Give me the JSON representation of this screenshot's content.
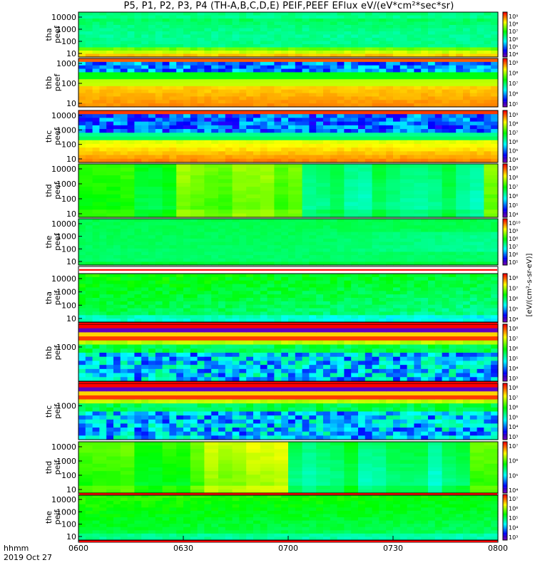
{
  "title": "P5, P1, P2, P3, P4 (TH-A,B,C,D,E) PEIF,PEEF EFlux eV/(eV*cm²*sec*sr)",
  "chart_data": {
    "type": "heatmap",
    "x_ticks": [
      "0600",
      "0630",
      "0700",
      "0730",
      "0800"
    ],
    "x_label": "hhmm",
    "date_label": "2019 Oct 27",
    "colorbar_label": "[eV/(cm²-s-sr-eV)]",
    "panels": [
      {
        "probe": "tha",
        "product": "peef",
        "y_ticks": [
          "10000",
          "1000",
          "100",
          "10"
        ],
        "cbar_ticks": [
          "10⁹",
          "10⁸",
          "10⁷",
          "10⁶",
          "10⁵",
          "10⁴"
        ],
        "pattern": "elec_a"
      },
      {
        "probe": "thb",
        "product": "peef",
        "y_ticks": [
          "1000",
          "100",
          "10"
        ],
        "cbar_ticks": [
          "10⁹",
          "10⁸",
          "10⁷",
          "10⁶",
          "10⁵"
        ],
        "pattern": "elec_b"
      },
      {
        "probe": "thc",
        "product": "peef",
        "y_ticks": [
          "10000",
          "1000",
          "100",
          "10"
        ],
        "cbar_ticks": [
          "10⁹",
          "10⁸",
          "10⁷",
          "10⁶",
          "10⁵",
          "10⁴"
        ],
        "pattern": "elec_c"
      },
      {
        "probe": "thd",
        "product": "peef",
        "y_ticks": [
          "10000",
          "1000",
          "100",
          "10"
        ],
        "cbar_ticks": [
          "10⁹",
          "10⁸",
          "10⁷",
          "10⁶",
          "10⁵",
          "10⁴"
        ],
        "pattern": "elec_d"
      },
      {
        "probe": "the",
        "product": "peef",
        "y_ticks": [
          "10000",
          "1000",
          "100",
          "10"
        ],
        "cbar_ticks": [
          "10¹⁰",
          "10⁹",
          "10⁸",
          "10⁷",
          "10⁶",
          "10⁵"
        ],
        "pattern": "elec_e"
      },
      {
        "probe": "tha",
        "product": "peif",
        "y_ticks": [
          "10000",
          "1000",
          "100",
          "10"
        ],
        "cbar_ticks": [
          "10⁸",
          "10⁷",
          "10⁶",
          "10⁵",
          "10⁴"
        ],
        "pattern": "ion_a"
      },
      {
        "probe": "thb",
        "product": "peif",
        "y_ticks": [
          "1000"
        ],
        "cbar_ticks": [
          "10⁸",
          "10⁷",
          "10⁶",
          "10⁵",
          "10⁴",
          "10³"
        ],
        "pattern": "ion_b"
      },
      {
        "probe": "thc",
        "product": "peif",
        "y_ticks": [
          "1000"
        ],
        "cbar_ticks": [
          "10⁸",
          "10⁷",
          "10⁶",
          "10⁵",
          "10⁴",
          "10³"
        ],
        "pattern": "ion_c"
      },
      {
        "probe": "thd",
        "product": "peif",
        "y_ticks": [
          "10000",
          "1000",
          "100",
          "10"
        ],
        "cbar_ticks": [
          "10⁷",
          "10⁶",
          "10⁵",
          "10⁴"
        ],
        "pattern": "ion_d"
      },
      {
        "probe": "the",
        "product": "peif",
        "y_ticks": [
          "10000",
          "1000",
          "100",
          "10"
        ],
        "cbar_ticks": [
          "10⁷",
          "10⁶",
          "10⁵",
          "10⁴",
          "10³"
        ],
        "pattern": "ion_e"
      }
    ]
  }
}
